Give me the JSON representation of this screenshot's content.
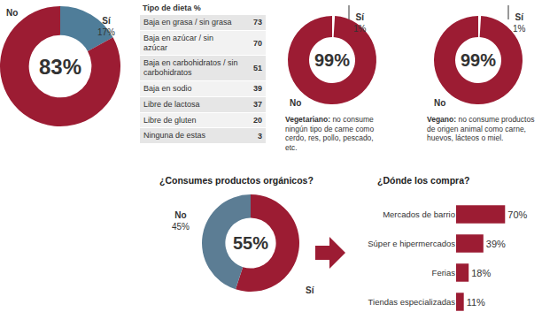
{
  "chart_data": [
    {
      "type": "pie",
      "categories": [
        "Sí",
        "No"
      ],
      "values": [
        17,
        83
      ],
      "value_labels": [
        "17%",
        "83%"
      ],
      "colors": [
        "#4f7d99",
        "#9c1c33"
      ]
    },
    {
      "type": "table",
      "title": "Tipo de dieta %",
      "categories": [
        "Baja en grasa / sin grasa",
        "Baja en azúcar / sin azúcar",
        "Baja en carbohidratos / sin carbohidratos",
        "Baja en sodio",
        "Libre de lactosa",
        "Libre de gluten",
        "Ninguna de estas"
      ],
      "values": [
        73,
        70,
        51,
        39,
        37,
        20,
        3
      ]
    },
    {
      "type": "pie",
      "categories": [
        "Sí",
        "No"
      ],
      "values": [
        1,
        99
      ],
      "value_labels": [
        "1%",
        "99%"
      ],
      "colors": [
        "#ffffff",
        "#9c1c33"
      ],
      "note": {
        "term": "Vegetariano:",
        "text": "no consume ningún tipo de carne como cerdo, res, pollo, pescado, etc."
      }
    },
    {
      "type": "pie",
      "categories": [
        "Sí",
        "No"
      ],
      "values": [
        1,
        99
      ],
      "value_labels": [
        "1%",
        "99%"
      ],
      "colors": [
        "#ffffff",
        "#9c1c33"
      ],
      "note": {
        "term": "Vegano:",
        "text": "no consume productos de origen animal como carne, huevos, lácteos o miel."
      }
    },
    {
      "type": "pie",
      "title": "¿Consumes productos orgánicos?",
      "categories": [
        "Sí",
        "No"
      ],
      "values": [
        55,
        45
      ],
      "value_labels": [
        "55%",
        "45%"
      ],
      "colors": [
        "#9c1c33",
        "#5c7d94"
      ]
    },
    {
      "type": "bar",
      "title": "¿Dónde los compra?",
      "orientation": "horizontal",
      "categories": [
        "Mercados de barrio",
        "Súper e hipermercados",
        "Ferias",
        "Tiendas especializadas"
      ],
      "values": [
        70,
        39,
        18,
        11
      ],
      "value_labels": [
        "70%",
        "39%",
        "18%",
        "11%"
      ],
      "data_labels": true,
      "tick_labels": "y",
      "xlim": [
        0,
        100
      ],
      "color": "#9c1c33"
    }
  ]
}
